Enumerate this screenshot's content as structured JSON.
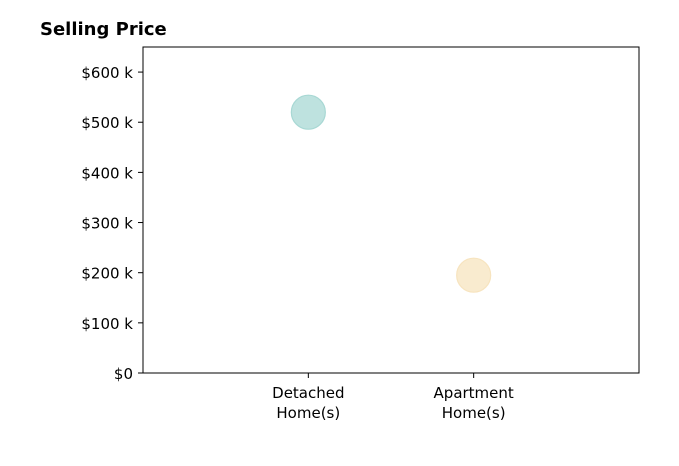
{
  "chart_data": {
    "type": "scatter",
    "title": "Selling Price",
    "xlabel": "",
    "ylabel": "",
    "categories": [
      "Detached\nHome(s)",
      "Apartment\nHome(s)"
    ],
    "x_positions": [
      1,
      2
    ],
    "xlim": [
      0,
      3
    ],
    "ylim": [
      0,
      650000
    ],
    "y_ticks": [
      0,
      100000,
      200000,
      300000,
      400000,
      500000,
      600000
    ],
    "y_tick_labels": [
      "$0",
      "$100 k",
      "$200 k",
      "$300 k",
      "$400 k",
      "$500 k",
      "$600 k"
    ],
    "grid": false,
    "legend": "none",
    "points": [
      {
        "category": "Detached\nHome(s)",
        "x": 1,
        "y": 520000,
        "color": "#a8d8d4"
      },
      {
        "category": "Apartment\nHome(s)",
        "x": 2,
        "y": 195000,
        "color": "#f7e4bf"
      }
    ]
  }
}
